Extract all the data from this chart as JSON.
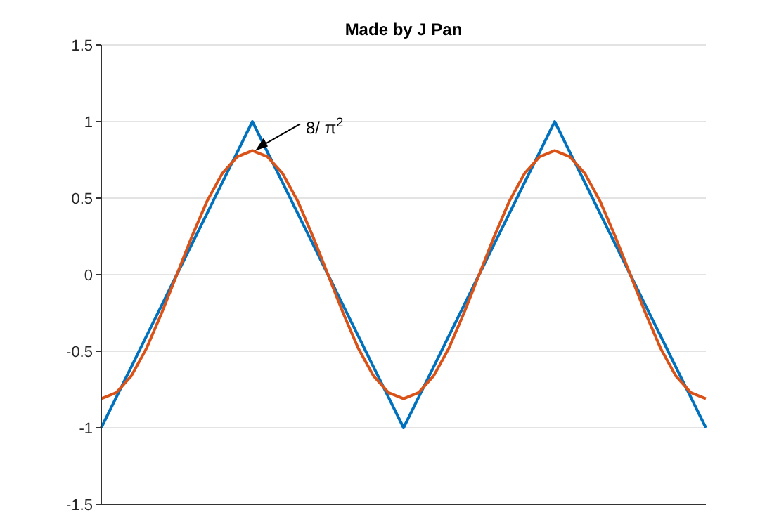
{
  "chart_data": {
    "type": "line",
    "title": "Made by J Pan",
    "categories": [
      null,
      null,
      null,
      null,
      null,
      null,
      null,
      null,
      null,
      null,
      null,
      null,
      null,
      null,
      null,
      null,
      null,
      null,
      null,
      null,
      null,
      null,
      null,
      null,
      null,
      null,
      null,
      null,
      null,
      null,
      null,
      null,
      null,
      null,
      null,
      null,
      null,
      null,
      null,
      null,
      null
    ],
    "ylim": [
      -1.5,
      1.5
    ],
    "yticks": [
      -1.5,
      -1,
      -0.5,
      0,
      0.5,
      1,
      1.5
    ],
    "tick_labels": "y",
    "grid": "y",
    "series": [
      {
        "color": "#0072bd",
        "values": [
          -1,
          -0.8,
          -0.6,
          -0.4,
          -0.2,
          0,
          0.2,
          0.4,
          0.6,
          0.8,
          1,
          0.8,
          0.6,
          0.4,
          0.2,
          0,
          -0.2,
          -0.4,
          -0.6,
          -0.8,
          -1,
          -0.8,
          -0.6,
          -0.4,
          -0.2,
          0,
          0.2,
          0.4,
          0.6,
          0.8,
          1,
          0.8,
          0.6,
          0.4,
          0.2,
          0,
          -0.2,
          -0.4,
          -0.6,
          -0.8,
          -1
        ]
      },
      {
        "color": "#d95319",
        "values": [
          -0.81,
          -0.77,
          -0.66,
          -0.48,
          -0.25,
          0,
          0.25,
          0.48,
          0.66,
          0.77,
          0.81,
          0.77,
          0.66,
          0.48,
          0.25,
          0,
          -0.25,
          -0.48,
          -0.66,
          -0.77,
          -0.81,
          -0.77,
          -0.66,
          -0.48,
          -0.25,
          0,
          0.25,
          0.48,
          0.66,
          0.77,
          0.81,
          0.77,
          0.66,
          0.48,
          0.25,
          0,
          -0.25,
          -0.48,
          -0.66,
          -0.77,
          -0.81
        ]
      }
    ],
    "annotations": [
      "8/ π$^{2}$"
    ]
  }
}
